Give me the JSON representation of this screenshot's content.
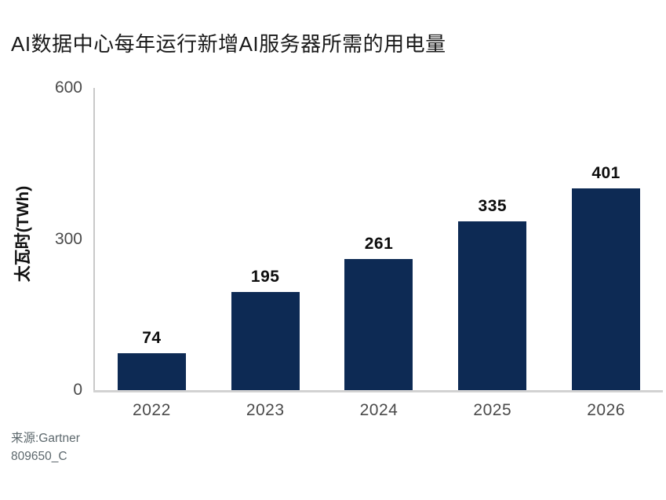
{
  "title": "AI数据中心每年运行新增AI服务器所需的用电量",
  "source": {
    "line1": "来源:Gartner",
    "line2": "809650_C"
  },
  "colors": {
    "bar": "#0d2a54",
    "axis": "#c9c9c9",
    "baseline": "#d2d2d2",
    "tick_label": "#4a4a4a",
    "data_label": "#0d0d0d",
    "title": "#1a1a1a",
    "source_text": "#5d686d"
  },
  "chart_data": {
    "type": "bar",
    "title": "AI数据中心每年运行新增AI服务器所需的用电量",
    "categories": [
      "2022",
      "2023",
      "2024",
      "2025",
      "2026"
    ],
    "values": [
      74,
      195,
      261,
      335,
      401
    ],
    "xlabel": "",
    "ylabel": "太瓦时(TWh)",
    "ylim": [
      0,
      600
    ],
    "yticks": [
      0,
      300,
      600
    ],
    "grid": false,
    "legend": "none",
    "bar_color": "#0d2a54",
    "data_labels_shown": true,
    "source": "来源:Gartner",
    "doc_code": "809650_C"
  }
}
